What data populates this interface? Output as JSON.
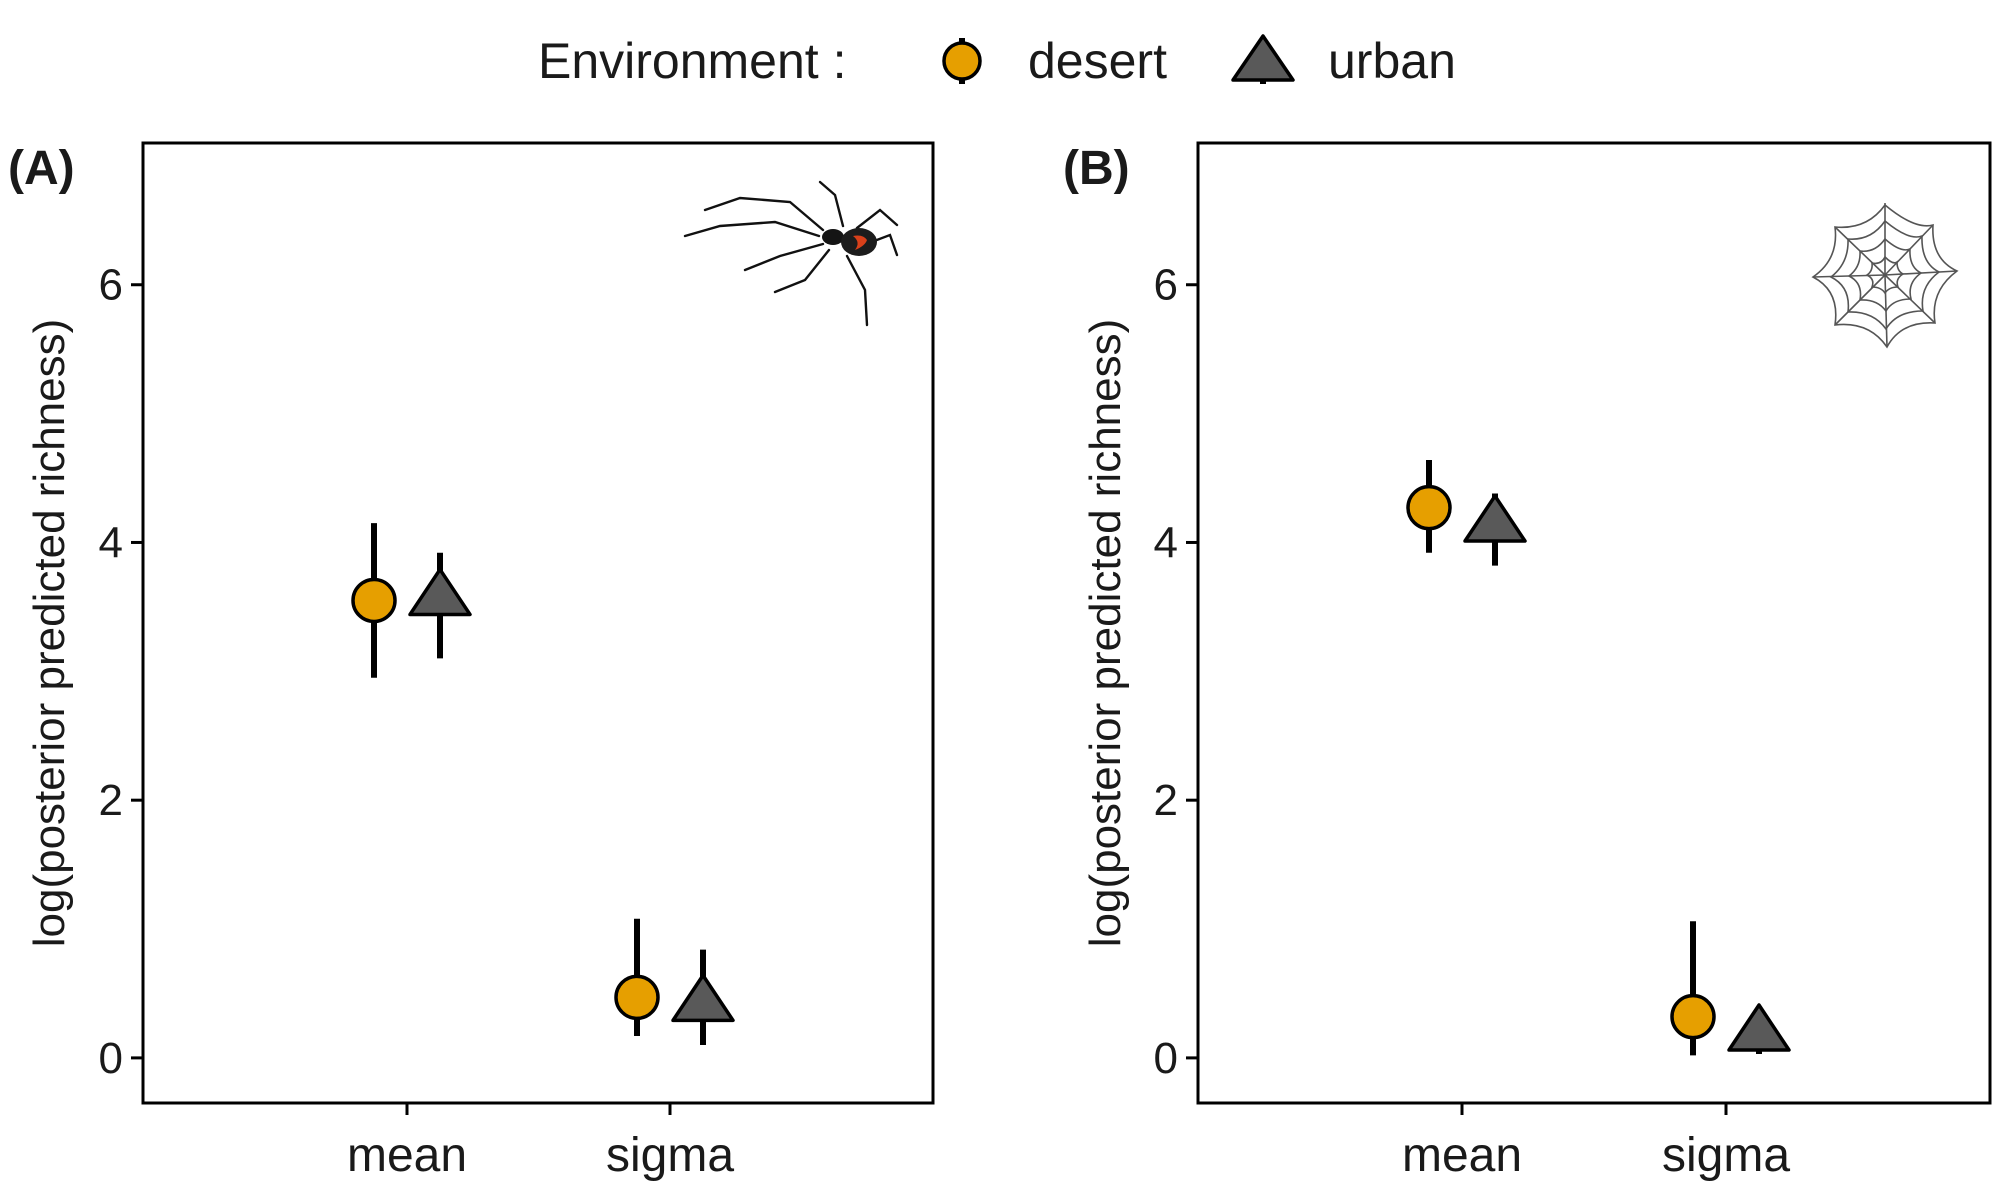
{
  "legend": {
    "title": "Environment :",
    "entries": [
      {
        "label": "desert",
        "shape": "circle",
        "color": "#E69F00"
      },
      {
        "label": "urban",
        "shape": "triangle",
        "color": "#595959"
      }
    ]
  },
  "chart_data": [
    {
      "panel_label": "(A)",
      "type": "scatter",
      "icon": "black-widow-spider-icon",
      "categories": [
        "mean",
        "sigma"
      ],
      "ylabel": "log(posterior predicted richness)",
      "ylim": [
        -0.35,
        7.1
      ],
      "yticks": [
        0,
        2,
        4,
        6
      ],
      "series": [
        {
          "name": "desert",
          "points": [
            {
              "category": "mean",
              "y": 3.55,
              "lower": 2.95,
              "upper": 4.15
            },
            {
              "category": "sigma",
              "y": 0.47,
              "lower": 0.17,
              "upper": 1.08
            }
          ]
        },
        {
          "name": "urban",
          "points": [
            {
              "category": "mean",
              "y": 3.55,
              "lower": 3.1,
              "upper": 3.92
            },
            {
              "category": "sigma",
              "y": 0.4,
              "lower": 0.1,
              "upper": 0.84
            }
          ]
        }
      ]
    },
    {
      "panel_label": "(B)",
      "type": "scatter",
      "icon": "spider-web-icon",
      "categories": [
        "mean",
        "sigma"
      ],
      "ylabel": "log(posterior predicted richness)",
      "ylim": [
        -0.35,
        7.1
      ],
      "yticks": [
        0,
        2,
        4,
        6
      ],
      "series": [
        {
          "name": "desert",
          "points": [
            {
              "category": "mean",
              "y": 4.27,
              "lower": 3.92,
              "upper": 4.64
            },
            {
              "category": "sigma",
              "y": 0.32,
              "lower": 0.02,
              "upper": 1.06
            }
          ]
        },
        {
          "name": "urban",
          "points": [
            {
              "category": "mean",
              "y": 4.12,
              "lower": 3.82,
              "upper": 4.38
            },
            {
              "category": "sigma",
              "y": 0.17,
              "lower": 0.03,
              "upper": 0.4
            }
          ]
        }
      ]
    }
  ]
}
